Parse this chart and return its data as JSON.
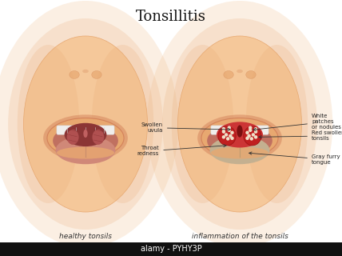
{
  "title": "Tonsillitis",
  "title_fontsize": 13,
  "label_left": "healthy tonsils",
  "label_right": "inflammation of the tonsils",
  "label_fontsize": 6.5,
  "bg_color": "#ffffff",
  "skin_light": "#f5c89a",
  "skin_mid": "#e8a870",
  "skin_dark": "#d4895a",
  "skin_shadow": "#e0a07a",
  "lip_color": "#d4825a",
  "mouth_interior": "#c07060",
  "throat_healthy_dark": "#8b3535",
  "throat_healthy_mid": "#b05050",
  "tongue_healthy": "#d08878",
  "tongue_inflamed": "#c4b090",
  "teeth_color": "#f0eeec",
  "uvula_healthy": "#c06060",
  "uvula_inflamed": "#7a1010",
  "tonsil_inflamed": "#c02020",
  "throat_inflamed": "#cc3535",
  "nodule_color": "#f0e0c8",
  "alamy_bar": "#111111",
  "alamy_text": "#ffffff",
  "watermark": "alamy - PYHY3P",
  "ann_fontsize": 5.0,
  "arr_color": "#333333"
}
